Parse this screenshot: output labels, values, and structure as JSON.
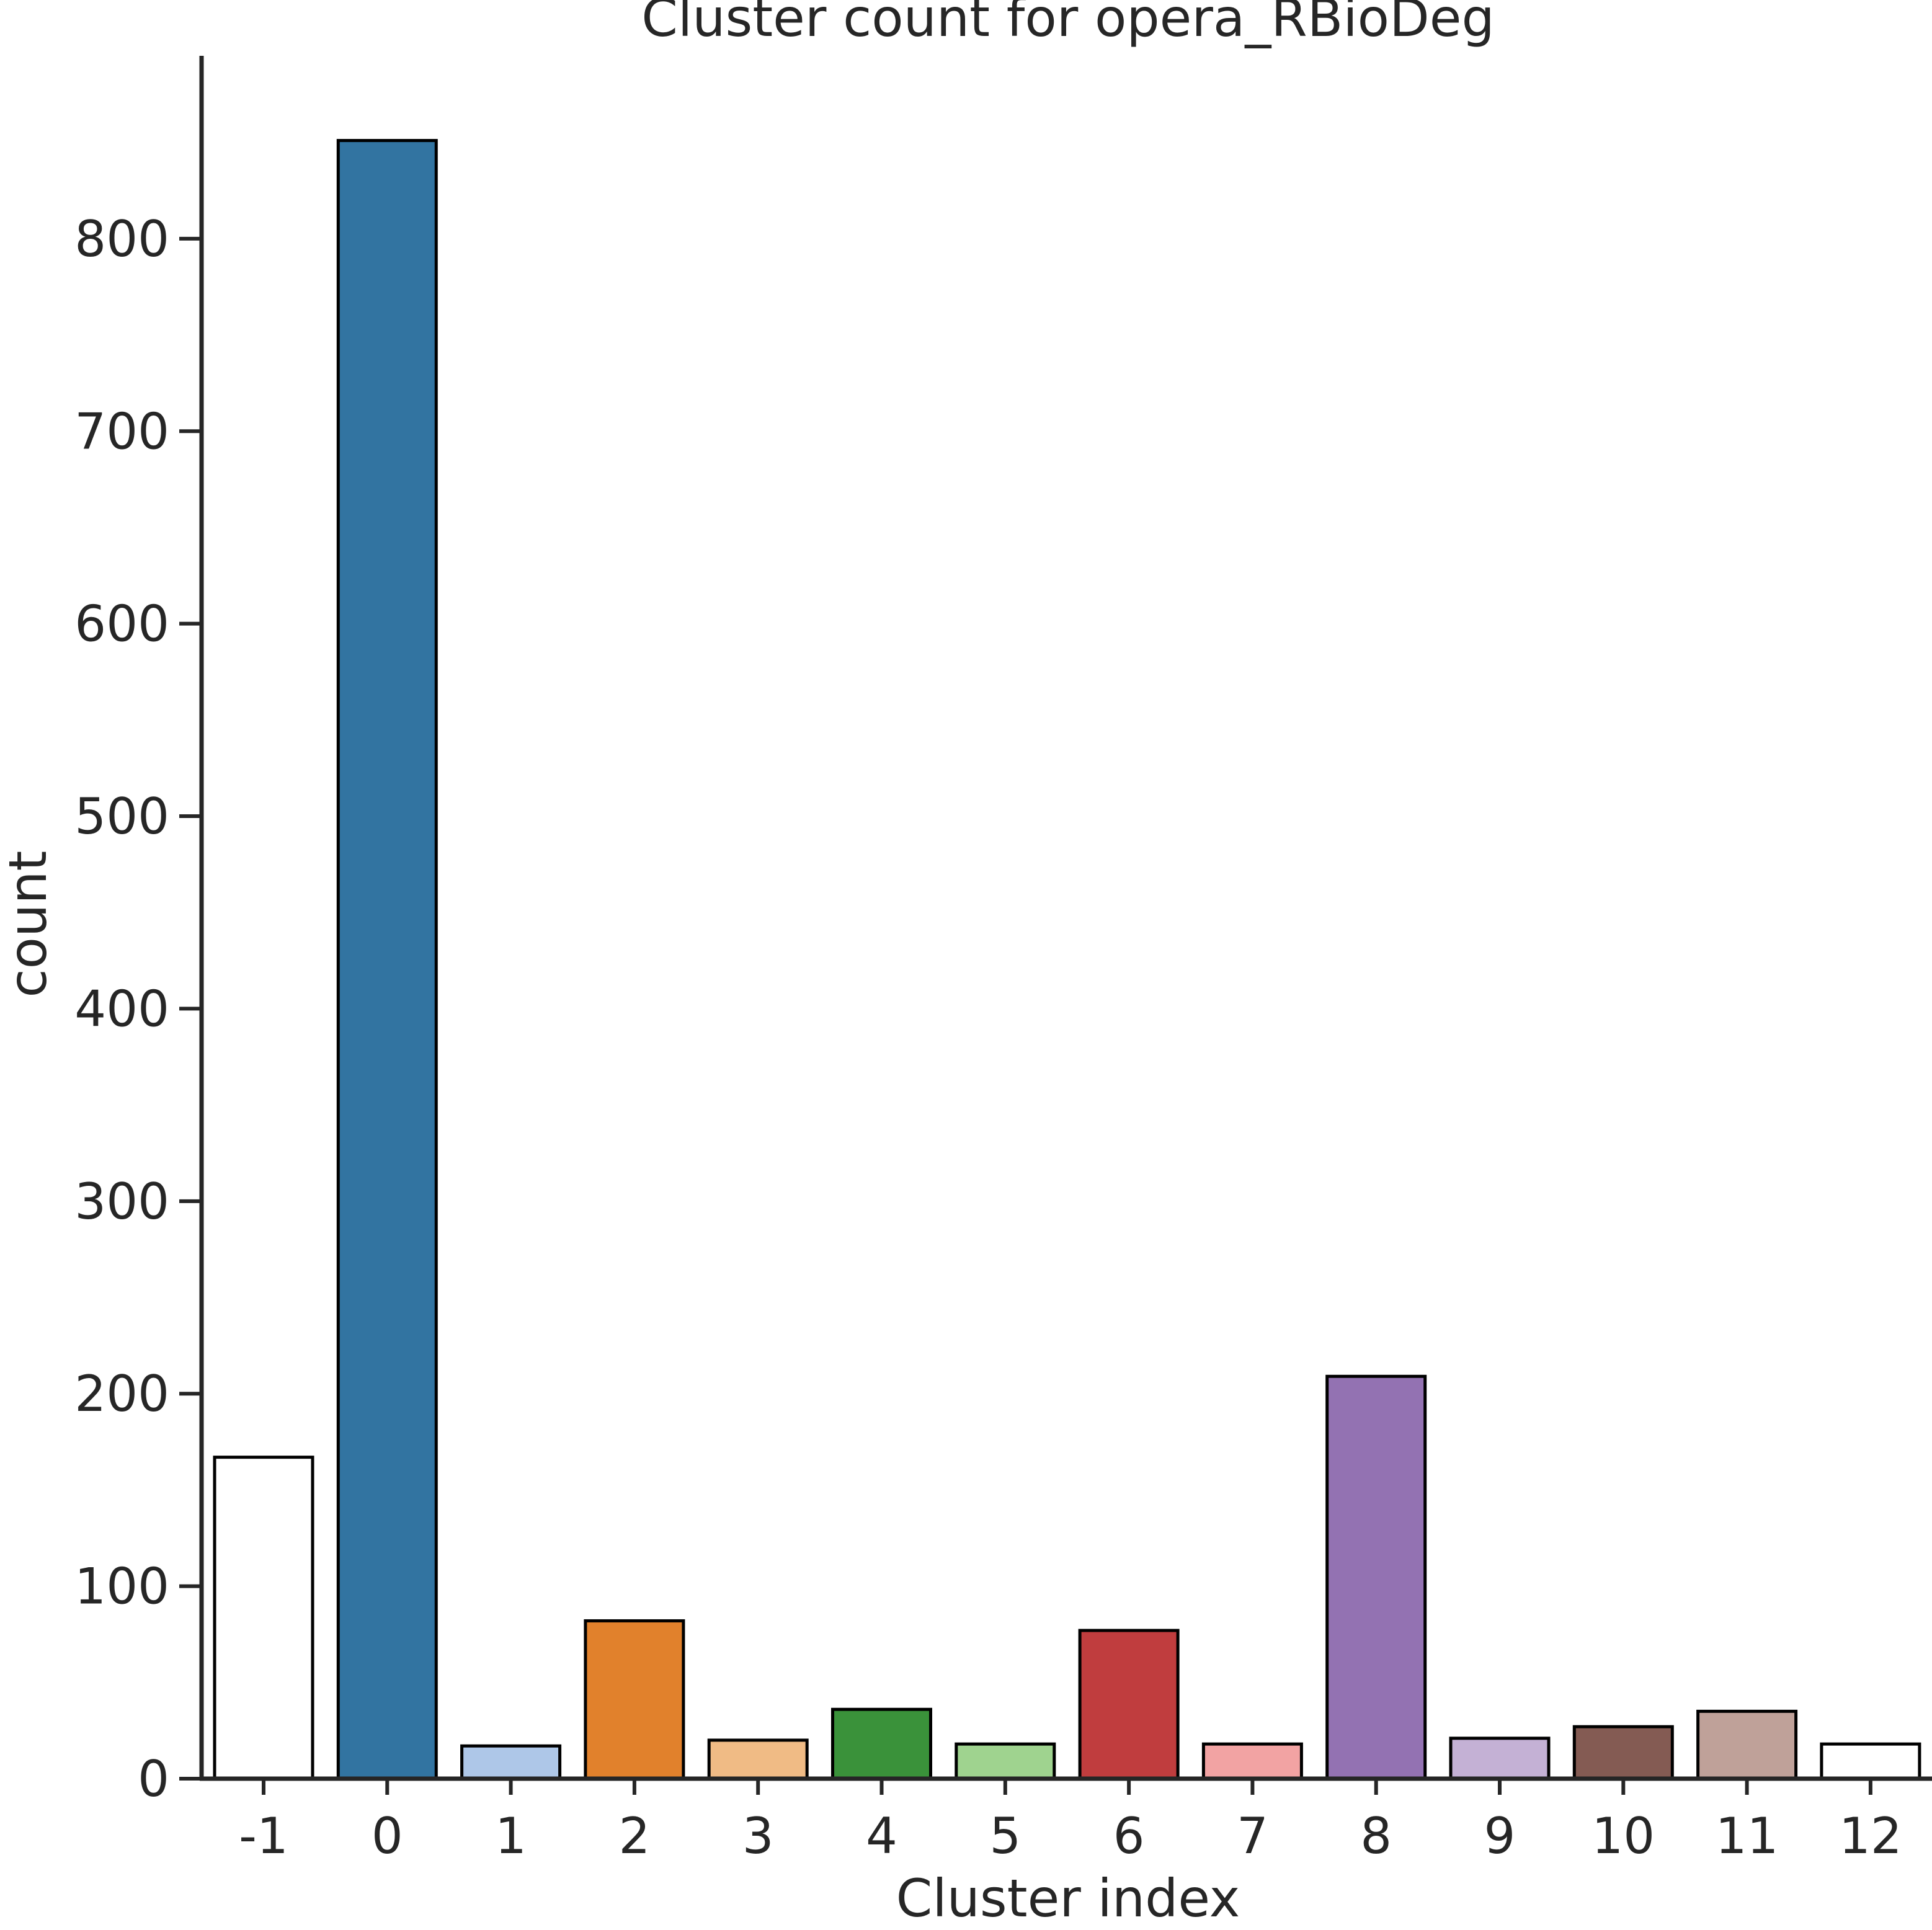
{
  "chart_data": {
    "type": "bar",
    "title": "Cluster count for opera_RBioDeg",
    "xlabel": "Cluster index",
    "ylabel": "count",
    "categories": [
      "-1",
      "0",
      "1",
      "2",
      "3",
      "4",
      "5",
      "6",
      "7",
      "8",
      "9",
      "10",
      "11",
      "12"
    ],
    "values": [
      167,
      851,
      17,
      82,
      20,
      36,
      18,
      77,
      18,
      209,
      21,
      27,
      35,
      18
    ],
    "colors": [
      "#ffffff",
      "#3274a1",
      "#aec7e8",
      "#e1812c",
      "#f0bb85",
      "#3a923a",
      "#9fd38f",
      "#c03d3e",
      "#f2a3a3",
      "#9372b2",
      "#c4b1d5",
      "#845b53",
      "#bfa199",
      "#ffffff"
    ],
    "edge_color": "#000000",
    "ylim": [
      0,
      895
    ],
    "yticks": [
      0,
      100,
      200,
      300,
      400,
      500,
      600,
      700,
      800
    ],
    "grid": false
  }
}
